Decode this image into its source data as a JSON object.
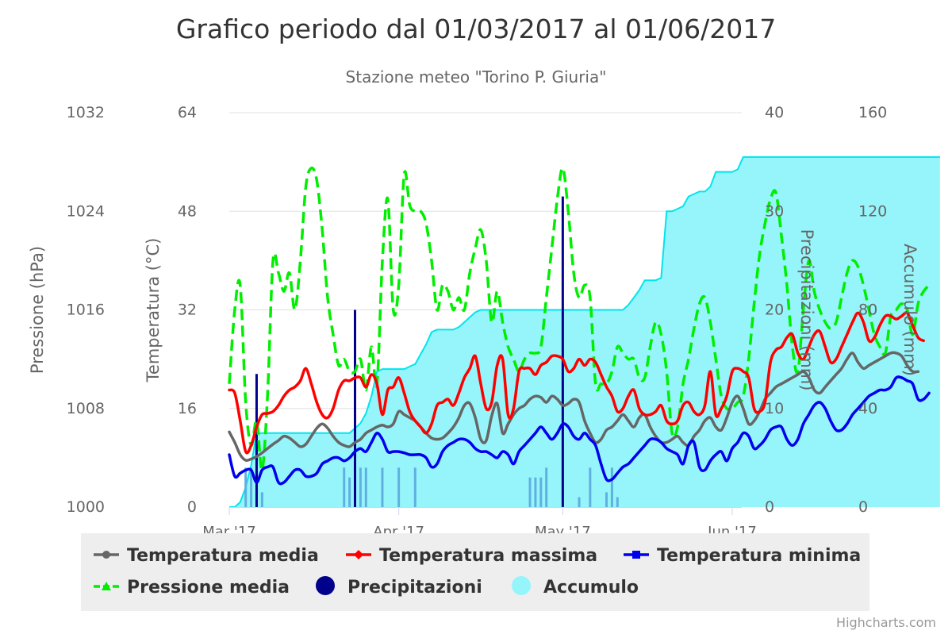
{
  "chart_data": {
    "type": "line",
    "title": "Grafico periodo dal 01/03/2017 al 01/06/2017",
    "subtitle": "Stazione meteo \"Torino P. Giuria\"",
    "credits": "Highcharts.com",
    "x_axis": {
      "range": [
        "2017-03-01",
        "2017-06-01"
      ],
      "tick_labels": [
        "Mar '17",
        "Apr '17",
        "May '17",
        "Jun '17"
      ],
      "tick_dates": [
        "2017-03-01",
        "2017-04-01",
        "2017-05-01",
        "2017-06-01"
      ]
    },
    "y_axes": [
      {
        "id": "pressure",
        "label": "Pressione (hPa)",
        "ticks": [
          1000,
          1008,
          1016,
          1024,
          1032
        ],
        "range": [
          1000,
          1032
        ],
        "side": "left-outer"
      },
      {
        "id": "temperature",
        "label": "Temperatura (°C)",
        "ticks": [
          0,
          16,
          32,
          48,
          64
        ],
        "range": [
          0,
          64
        ],
        "side": "left-inner"
      },
      {
        "id": "precip",
        "label": "Precipitazioni (mm)",
        "ticks": [
          0,
          10,
          20,
          30,
          40
        ],
        "range": [
          0,
          40
        ],
        "side": "right-inner"
      },
      {
        "id": "accum",
        "label": "Accumulo (mm)",
        "ticks": [
          0,
          40,
          80,
          120,
          160
        ],
        "range": [
          0,
          160
        ],
        "side": "right-outer"
      }
    ],
    "grid": true,
    "legend_position": "bottom",
    "series": [
      {
        "name": "Temperatura media",
        "axis": "temperature",
        "kind": "line",
        "color": "#666666",
        "marker": "circle",
        "dashed": false,
        "values": [
          12.2,
          10.5,
          8.5,
          7.6,
          7.8,
          8.2,
          8.8,
          9.5,
          10.2,
          10.8,
          11.5,
          11.2,
          10.5,
          9.8,
          10.2,
          11.5,
          12.8,
          13.5,
          12.8,
          11.5,
          10.5,
          10.0,
          9.8,
          10.5,
          11.0,
          12.0,
          12.5,
          13.0,
          13.3,
          13.0,
          13.5,
          15.5,
          15.0,
          14.5,
          14.0,
          13.0,
          12.0,
          11.2,
          11.0,
          11.2,
          12.0,
          13.0,
          14.5,
          16.5,
          16.8,
          14.5,
          11.0,
          10.8,
          14.8,
          16.8,
          12.0,
          13.5,
          15.0,
          16.0,
          16.5,
          17.5,
          18.0,
          17.8,
          17.0,
          18.0,
          17.5,
          16.5,
          16.8,
          17.5,
          17.0,
          14.0,
          12.0,
          10.5,
          11.0,
          12.5,
          13.0,
          14.0,
          15.0,
          14.0,
          13.0,
          14.5,
          15.0,
          13.0,
          11.5,
          10.5,
          10.5,
          11.0,
          11.5,
          10.5,
          10.0,
          11.5,
          12.5,
          14.0,
          14.5,
          13.0,
          12.5,
          14.5,
          17.0,
          18.0,
          16.0,
          13.5,
          14.0,
          15.5,
          17.5,
          18.5,
          19.5,
          20.0,
          20.5,
          21.0,
          21.5,
          22.0,
          21.0,
          19.0,
          18.5,
          19.5,
          20.5,
          21.5,
          22.5,
          24.0,
          25.0,
          23.5,
          22.5,
          23.0,
          23.5,
          24.0,
          24.5,
          25.0,
          25.0,
          24.5,
          23.0,
          22.0,
          22.0
        ]
      },
      {
        "name": "Temperatura massima",
        "axis": "temperature",
        "kind": "line",
        "color": "#ff0000",
        "marker": "diamond",
        "dashed": false,
        "values": [
          19.0,
          18.5,
          14.0,
          9.0,
          10.0,
          13.0,
          15.0,
          15.2,
          15.5,
          16.5,
          18.0,
          19.0,
          19.5,
          20.5,
          22.5,
          20.0,
          17.0,
          15.0,
          14.5,
          16.0,
          19.0,
          20.5,
          20.5,
          21.0,
          21.0,
          19.5,
          21.5,
          20.0,
          15.0,
          19.0,
          19.5,
          21.0,
          18.5,
          15.5,
          14.0,
          13.0,
          12.0,
          13.5,
          16.5,
          17.0,
          17.5,
          16.5,
          18.5,
          21.0,
          22.5,
          24.5,
          20.0,
          16.0,
          17.0,
          23.0,
          24.0,
          15.0,
          16.0,
          22.0,
          22.5,
          22.5,
          21.5,
          23.0,
          23.5,
          24.5,
          24.5,
          24.0,
          22.0,
          22.5,
          24.0,
          23.0,
          24.0,
          23.5,
          21.5,
          19.5,
          18.0,
          15.5,
          16.0,
          18.0,
          19.0,
          16.0,
          15.0,
          15.0,
          15.5,
          16.5,
          14.0,
          13.5,
          14.0,
          16.5,
          17.0,
          15.5,
          15.0,
          16.5,
          22.0,
          15.0,
          16.0,
          18.0,
          22.0,
          22.5,
          22.0,
          21.0,
          16.0,
          15.5,
          17.0,
          23.5,
          25.5,
          26.0,
          27.5,
          28.0,
          25.0,
          24.0,
          26.0,
          28.0,
          28.5,
          26.0,
          23.5,
          24.0,
          26.0,
          28.0,
          30.0,
          31.5,
          30.0,
          27.0,
          27.5,
          29.5,
          31.0,
          31.0,
          30.5,
          31.0,
          31.5,
          29.5,
          27.5,
          27.0
        ]
      },
      {
        "name": "Temperatura minima",
        "axis": "temperature",
        "kind": "line",
        "color": "#0000ee",
        "marker": "square",
        "dashed": false,
        "values": [
          8.5,
          5.0,
          5.5,
          6.0,
          6.0,
          4.0,
          6.0,
          6.5,
          6.5,
          4.0,
          4.0,
          5.0,
          6.0,
          6.0,
          5.0,
          5.0,
          5.5,
          7.0,
          7.5,
          8.0,
          8.0,
          7.5,
          8.0,
          9.0,
          9.5,
          9.0,
          10.5,
          12.0,
          11.0,
          9.0,
          9.0,
          9.0,
          8.8,
          8.5,
          8.5,
          8.5,
          8.0,
          6.5,
          7.0,
          9.0,
          10.0,
          10.5,
          11.0,
          11.0,
          10.5,
          9.5,
          9.0,
          9.0,
          8.5,
          8.0,
          9.0,
          8.5,
          7.0,
          9.0,
          10.0,
          11.0,
          12.0,
          13.0,
          12.0,
          11.0,
          12.0,
          13.5,
          13.0,
          11.5,
          11.0,
          12.0,
          11.0,
          10.0,
          7.0,
          4.5,
          4.5,
          5.5,
          6.5,
          7.0,
          8.0,
          9.0,
          10.0,
          11.0,
          11.0,
          10.5,
          9.5,
          9.0,
          8.5,
          7.0,
          10.0,
          10.5,
          6.5,
          6.0,
          7.5,
          8.5,
          9.0,
          7.5,
          9.5,
          10.5,
          12.0,
          11.5,
          9.5,
          10.0,
          11.0,
          12.5,
          13.0,
          13.0,
          11.0,
          10.0,
          11.0,
          13.5,
          15.0,
          16.5,
          17.0,
          16.0,
          14.0,
          12.5,
          12.5,
          13.5,
          15.0,
          16.0,
          17.0,
          18.0,
          18.5,
          19.0,
          19.0,
          19.5,
          21.0,
          21.0,
          20.5,
          20.0,
          17.5,
          17.5,
          18.5
        ]
      },
      {
        "name": "Pressione media",
        "axis": "pressure",
        "kind": "line",
        "color": "#00ee00",
        "marker": "triangle",
        "dashed": true,
        "values": [
          1010.0,
          1016.0,
          1018.0,
          1008.5,
          1005.0,
          1007.0,
          1003.0,
          1009.0,
          1020.0,
          1019.0,
          1017.5,
          1019.0,
          1016.0,
          1020.0,
          1026.0,
          1027.5,
          1026.5,
          1022.5,
          1017.0,
          1014.0,
          1011.5,
          1012.0,
          1011.0,
          1011.0,
          1012.0,
          1009.5,
          1013.0,
          1010.0,
          1020.0,
          1025.0,
          1016.0,
          1018.0,
          1027.0,
          1024.5,
          1024.0,
          1024.0,
          1023.0,
          1020.0,
          1016.0,
          1018.0,
          1017.5,
          1016.0,
          1017.0,
          1016.0,
          1019.0,
          1021.0,
          1022.5,
          1020.0,
          1015.0,
          1017.5,
          1015.0,
          1013.0,
          1012.0,
          1011.0,
          1012.0,
          1012.5,
          1012.5,
          1013.0,
          1017.0,
          1021.0,
          1025.0,
          1027.5,
          1024.0,
          1019.0,
          1017.0,
          1018.0,
          1017.0,
          1010.0,
          1010.0,
          1010.0,
          1011.0,
          1013.0,
          1012.5,
          1012.0,
          1012.0,
          1010.5,
          1010.5,
          1013.0,
          1015.0,
          1014.0,
          1011.0,
          1006.0,
          1006.5,
          1010.0,
          1012.0,
          1014.5,
          1016.5,
          1017.0,
          1015.0,
          1012.0,
          1009.0,
          1008.0,
          1008.0,
          1008.5,
          1009.0,
          1012.0,
          1016.5,
          1020.5,
          1023.0,
          1025.0,
          1025.5,
          1022.0,
          1018.0,
          1013.0,
          1011.0,
          1016.0,
          1020.0,
          1017.5,
          1016.0,
          1015.0,
          1014.5,
          1015.0,
          1017.0,
          1019.0,
          1020.0,
          1019.5,
          1018.0,
          1016.0,
          1014.0,
          1013.0,
          1012.5,
          1015.5,
          1016.0,
          1016.5,
          1016.0,
          1014.0,
          1016.5,
          1017.5,
          1018.0
        ]
      },
      {
        "name": "Precipitazioni",
        "axis": "precip",
        "kind": "column",
        "color": "#00008b",
        "points": [
          {
            "x": "2017-03-04",
            "y": 4.0
          },
          {
            "x": "2017-03-05",
            "y": 4.0
          },
          {
            "x": "2017-03-06",
            "y": 13.5
          },
          {
            "x": "2017-03-07",
            "y": 1.5
          },
          {
            "x": "2017-03-22",
            "y": 4.0
          },
          {
            "x": "2017-03-23",
            "y": 3.0
          },
          {
            "x": "2017-03-24",
            "y": 20.0
          },
          {
            "x": "2017-03-25",
            "y": 4.0
          },
          {
            "x": "2017-03-26",
            "y": 4.0
          },
          {
            "x": "2017-03-29",
            "y": 4.0
          },
          {
            "x": "2017-04-01",
            "y": 4.0
          },
          {
            "x": "2017-04-04",
            "y": 4.0
          },
          {
            "x": "2017-04-25",
            "y": 3.0
          },
          {
            "x": "2017-04-26",
            "y": 3.0
          },
          {
            "x": "2017-04-27",
            "y": 3.0
          },
          {
            "x": "2017-04-28",
            "y": 4.0
          },
          {
            "x": "2017-05-01",
            "y": 31.5
          },
          {
            "x": "2017-05-04",
            "y": 1.0
          },
          {
            "x": "2017-05-06",
            "y": 4.0
          },
          {
            "x": "2017-05-09",
            "y": 1.5
          },
          {
            "x": "2017-05-10",
            "y": 4.0
          },
          {
            "x": "2017-05-11",
            "y": 1.0
          }
        ]
      },
      {
        "name": "Accumulo",
        "axis": "accum",
        "kind": "area",
        "color": "#00e5ee",
        "fill": "#96f5fa",
        "values": [
          0,
          0,
          2,
          8,
          17,
          30,
          30,
          30,
          30,
          30,
          30,
          30,
          30,
          30,
          30,
          30,
          30,
          30,
          30,
          30,
          30,
          30,
          30,
          32,
          34,
          38,
          45,
          55,
          56,
          56,
          56,
          56,
          56,
          57,
          58,
          62,
          66,
          71,
          72,
          72,
          72,
          72,
          73,
          75,
          77,
          79,
          80,
          80,
          80,
          80,
          80,
          80,
          80,
          80,
          80,
          80,
          80,
          80,
          80,
          80,
          80,
          80,
          80,
          80,
          80,
          80,
          80,
          80,
          80,
          80,
          80,
          80,
          80,
          82,
          85,
          88,
          92,
          92,
          92,
          93,
          120,
          120,
          121,
          122,
          126,
          127,
          128,
          128,
          130,
          136,
          136,
          136,
          136,
          137,
          142,
          142,
          142,
          142,
          142,
          142,
          142,
          142,
          142,
          142,
          142,
          142,
          142,
          142,
          142,
          142,
          142,
          142,
          142,
          142,
          142,
          142,
          142,
          142,
          142,
          142,
          142,
          142,
          142,
          142,
          142,
          142,
          142,
          142,
          142,
          142,
          142
        ]
      }
    ]
  },
  "legend": {
    "items": [
      {
        "label": "Temperatura media",
        "color": "#666666",
        "symbol": "circle",
        "style": "line"
      },
      {
        "label": "Temperatura massima",
        "color": "#ff0000",
        "symbol": "diamond",
        "style": "line"
      },
      {
        "label": "Temperatura minima",
        "color": "#0000ee",
        "symbol": "square",
        "style": "line"
      },
      {
        "label": "Pressione media",
        "color": "#00ee00",
        "symbol": "triangle",
        "style": "dashed"
      },
      {
        "label": "Precipitazioni",
        "color": "#00008b",
        "symbol": "dot",
        "style": "dot"
      },
      {
        "label": "Accumulo",
        "color": "#96f5fa",
        "symbol": "dot",
        "style": "dot"
      }
    ]
  },
  "colors": {
    "grid": "#e0e0e0",
    "axis_text": "#666666",
    "title": "#333333",
    "legend_bg": "#eeeeee"
  }
}
